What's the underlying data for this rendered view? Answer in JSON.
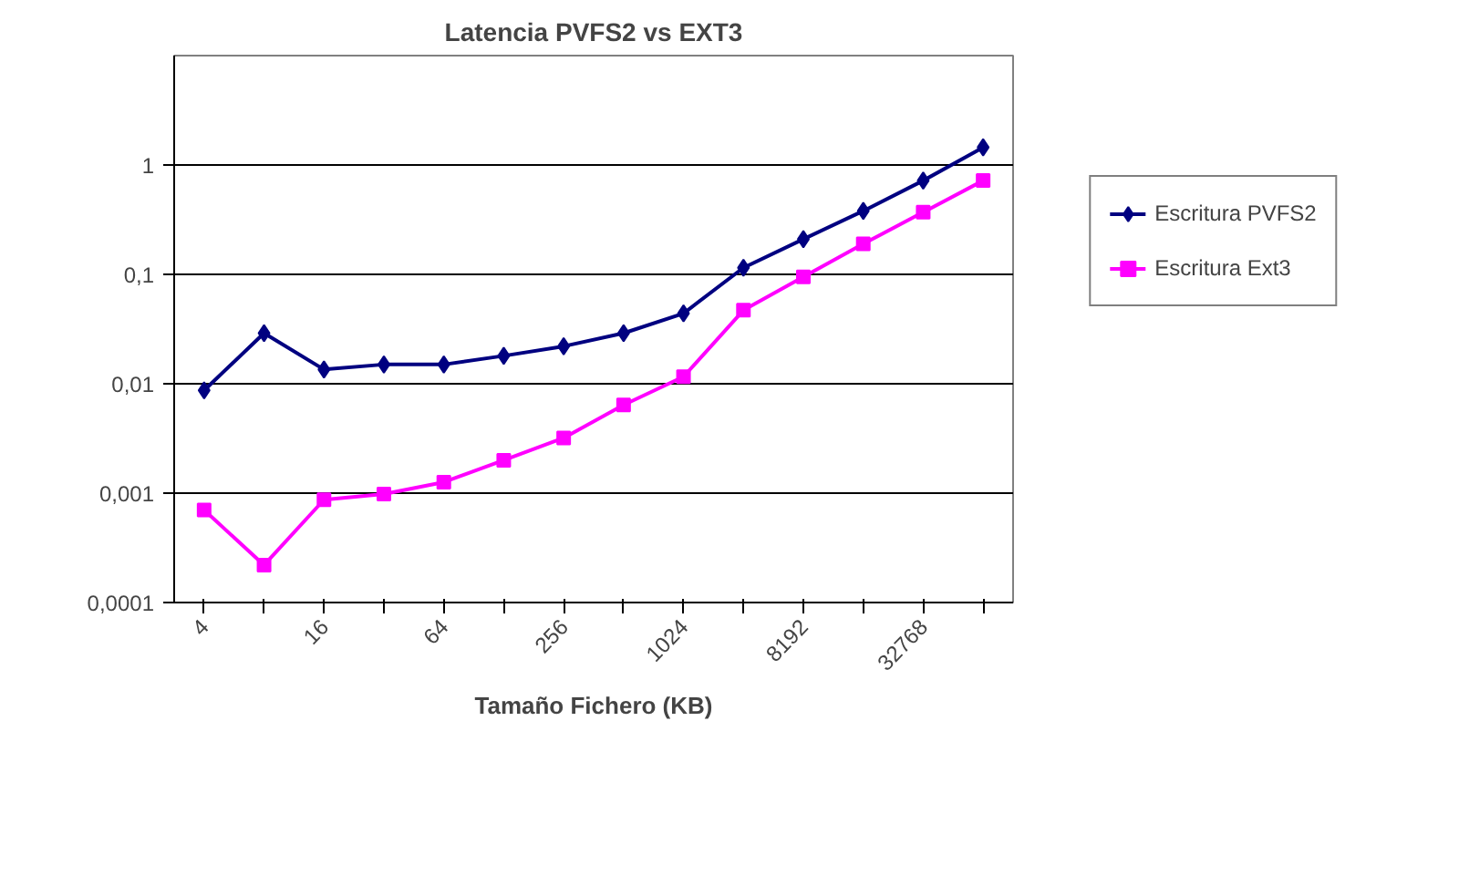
{
  "chart_data": {
    "type": "line",
    "title": "Latencia PVFS2 vs EXT3",
    "xlabel": "Tamaño Fichero (KB)",
    "categories": [
      "4",
      null,
      "16",
      null,
      "64",
      null,
      "256",
      null,
      "1024",
      null,
      "8192",
      null,
      "32768",
      null
    ],
    "series": [
      {
        "name": "Escritura PVFS2",
        "color": "#000080",
        "marker": "diamond",
        "values": [
          0.0087,
          0.029,
          0.0135,
          0.015,
          0.015,
          0.018,
          0.022,
          0.029,
          0.044,
          0.115,
          0.21,
          0.38,
          0.72,
          1.45
        ]
      },
      {
        "name": "Escritura Ext3",
        "color": "#ff00ff",
        "marker": "square",
        "values": [
          0.0007,
          0.00022,
          0.00087,
          0.00098,
          0.00126,
          0.002,
          0.0032,
          0.0064,
          0.0116,
          0.047,
          0.095,
          0.19,
          0.37,
          0.72
        ]
      }
    ],
    "log": "y",
    "ylim": [
      0.0001,
      10
    ],
    "yticks": [
      {
        "value": 0.0001,
        "label": "0,0001"
      },
      {
        "value": 0.001,
        "label": "0,001"
      },
      {
        "value": 0.01,
        "label": "0,01"
      },
      {
        "value": 0.1,
        "label": "0,1"
      },
      1
    ],
    "grid": "y",
    "legend": "right"
  }
}
